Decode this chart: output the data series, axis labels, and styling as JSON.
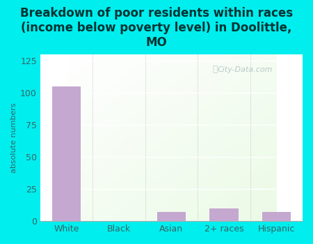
{
  "title": "Breakdown of poor residents within races\n(income below poverty level) in Doolittle,\nMO",
  "categories": [
    "White",
    "Black",
    "Asian",
    "2+ races",
    "Hispanic"
  ],
  "values": [
    105,
    0,
    7,
    10,
    7
  ],
  "bar_color": "#c4a8d0",
  "ylabel": "absolute numbers",
  "ylim": [
    0,
    130
  ],
  "yticks": [
    0,
    25,
    50,
    75,
    100,
    125
  ],
  "background_outer": "#00eeee",
  "title_fontsize": 12,
  "title_color": "#003333",
  "watermark": "City-Data.com",
  "tick_label_color": "#336666",
  "tick_label_fontsize": 9,
  "ylabel_fontsize": 8,
  "ylabel_color": "#336666"
}
